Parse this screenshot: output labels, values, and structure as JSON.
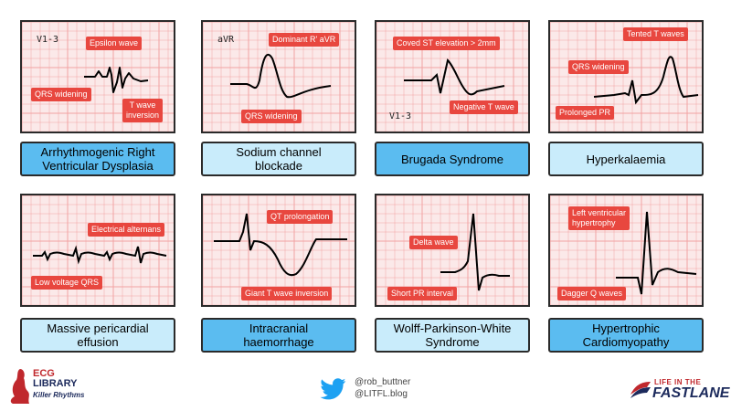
{
  "panels": [
    {
      "caption": "Arrhythmogenic Right\nVentricular Dysplasia",
      "lead": "V1-3",
      "labels": [
        "Epsilon wave",
        "QRS widening",
        "T wave\ninversion"
      ]
    },
    {
      "caption": "Sodium channel\nblockade",
      "lead": "aVR",
      "labels": [
        "Dominant R' aVR",
        "QRS widening"
      ]
    },
    {
      "caption": "Brugada Syndrome",
      "lead": "V1-3",
      "labels": [
        "Coved ST elevation > 2mm",
        "Negative T wave"
      ]
    },
    {
      "caption": "Hyperkalaemia",
      "lead": "",
      "labels": [
        "Tented T waves",
        "QRS widening",
        "Prolonged PR"
      ]
    },
    {
      "caption": "Massive pericardial\neffusion",
      "lead": "",
      "labels": [
        "Electrical alternans",
        "Low voltage QRS"
      ]
    },
    {
      "caption": "Intracranial\nhaemorrhage",
      "lead": "",
      "labels": [
        "QT prolongation",
        "Giant T wave inversion"
      ]
    },
    {
      "caption": "Wolff-Parkinson-White\nSyndrome",
      "lead": "",
      "labels": [
        "Delta wave",
        "Short PR interval"
      ]
    },
    {
      "caption": "Hypertrophic\nCardiomyopathy",
      "lead": "",
      "labels": [
        "Left ventricular\nhypertrophy",
        "Dagger Q waves"
      ]
    }
  ],
  "footer": {
    "left_logo": {
      "line1": "ECG",
      "line2": "LIBRARY",
      "line3": "Killer Rhythms"
    },
    "social": {
      "handle1": "@rob_buttner",
      "handle2": "@LITFL.blog"
    },
    "right_logo": {
      "line1": "LIFE IN THE",
      "line2": "FASTLANE"
    }
  },
  "colors": {
    "tag": "#e8473f",
    "caption_dark": "#5bbcf0",
    "caption_light": "#c9ecfb",
    "grid": "#f3a6a6",
    "panel_bg": "#fbe9e9",
    "twitter": "#1da1f2",
    "ecg_red": "#c0282d",
    "navy": "#1c2a5c"
  }
}
